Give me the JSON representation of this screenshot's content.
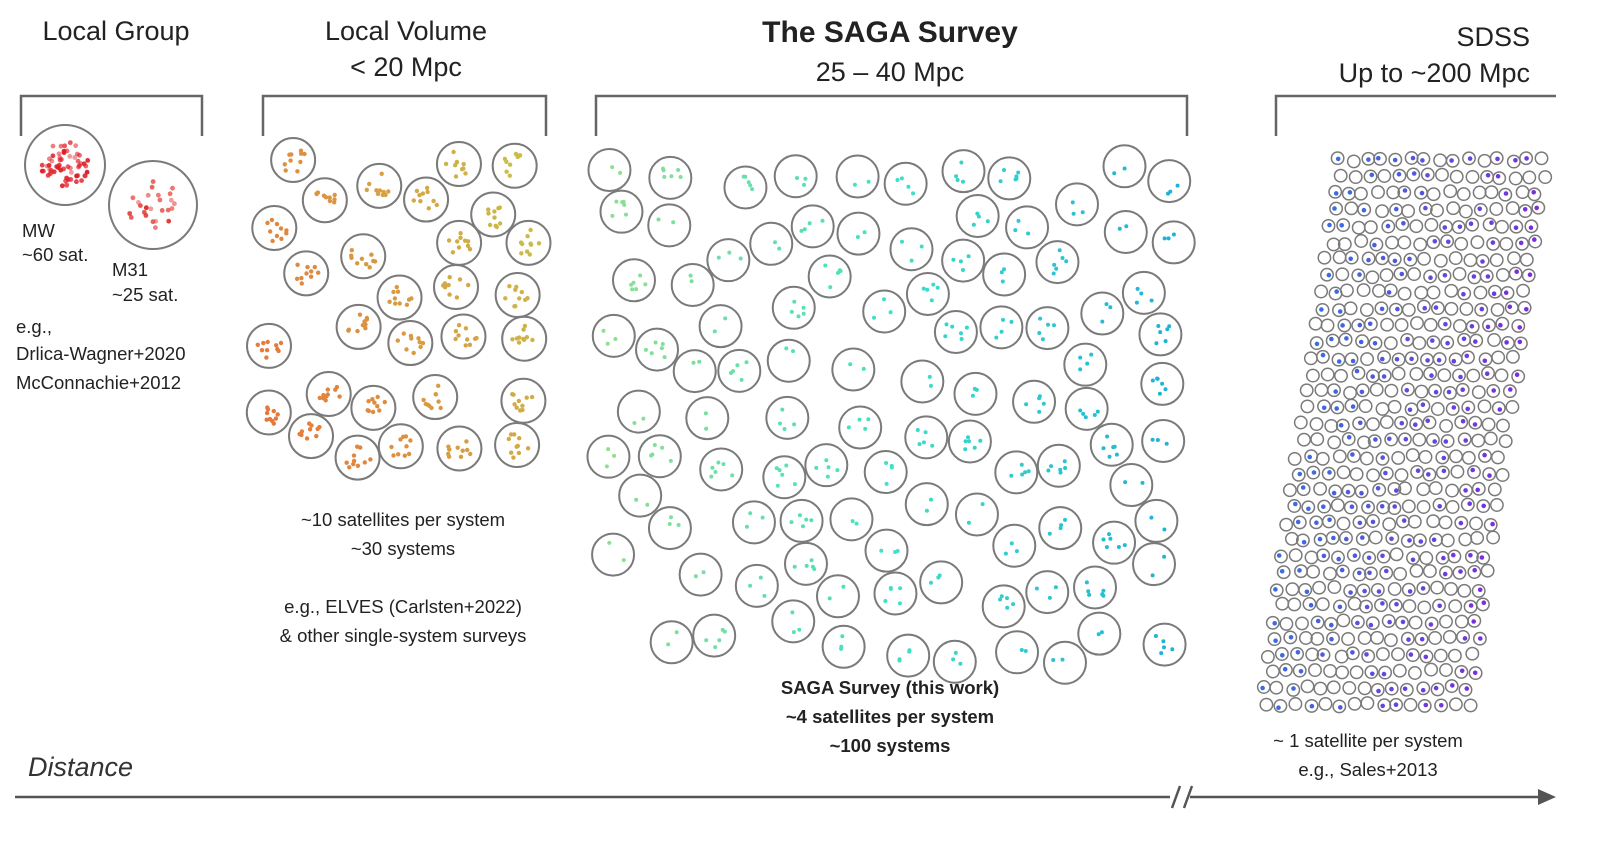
{
  "columns": {
    "local_group": {
      "title": "Local Group"
    },
    "local_volume": {
      "title_line1": "Local Volume",
      "title_line2": "< 20 Mpc"
    },
    "saga": {
      "title_line1": "The SAGA Survey",
      "title_line2": "25 – 40 Mpc"
    },
    "sdss": {
      "title_line1": "SDSS",
      "title_line2": "Up to ~200 Mpc"
    }
  },
  "local_group": {
    "mw_name": "MW",
    "mw_count": "~60 sat.",
    "m31_name": "M31",
    "m31_count": "~25 sat.",
    "eg": "e.g.,",
    "ref1": "Drlica-Wagner+2020",
    "ref2": "McConnachie+2012"
  },
  "local_volume": {
    "line1": "~10 satellites per system",
    "line2": "~30 systems",
    "line3": "e.g., ELVES (Carlsten+2022)",
    "line4": "& other single-system surveys"
  },
  "saga": {
    "line1": "SAGA Survey (this work)",
    "line2": "~4 satellites per system",
    "line3": "~100 systems"
  },
  "sdss": {
    "line1": "~ 1 satellite per system",
    "line2": "e.g., Sales+2013"
  },
  "axis": {
    "label": "Distance",
    "break_mark": "//"
  },
  "colors": {
    "circle_stroke": "#7a7a7a",
    "mw": "#e0202a",
    "m31": "#e0302a",
    "local_volume_start": "#e8743a",
    "local_volume_end": "#c9c24a",
    "saga_start": "#8ee08e",
    "saga_mid": "#3fe0c8",
    "saga_end": "#1fb0d8",
    "sdss_blue": "#3a6ee0",
    "sdss_purple": "#7a2ee0",
    "axis": "#555555"
  },
  "systems": {
    "local_group_count": 2,
    "local_volume_count": 30,
    "saga_count": 100,
    "mw_satellites": 60,
    "m31_satellites": 25,
    "local_volume_sats_per_system": 10,
    "saga_sats_per_system": 4,
    "sdss_sats_per_system": 1
  }
}
